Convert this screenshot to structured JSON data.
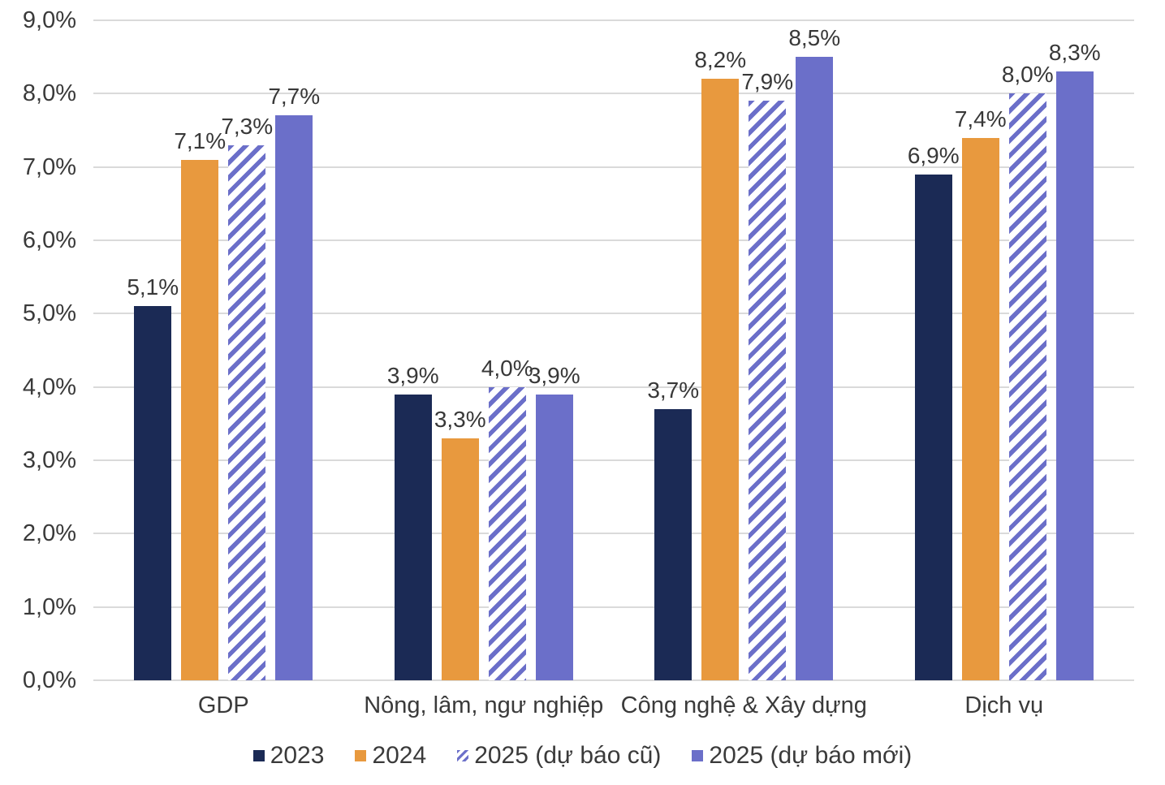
{
  "chart_data": {
    "type": "bar",
    "title": "",
    "categories": [
      "GDP",
      "Nông, lâm, ngư nghiệp",
      "Công nghệ & Xây dựng",
      "Dịch vụ"
    ],
    "series": [
      {
        "name": "2023",
        "color": "#1b2a55",
        "pattern": "solid",
        "values": [
          5.1,
          3.9,
          3.7,
          6.9
        ],
        "value_labels": [
          "5,1%",
          "3,9%",
          "3,7%",
          "6,9%"
        ]
      },
      {
        "name": "2024",
        "color": "#e8993e",
        "pattern": "solid",
        "values": [
          7.1,
          3.3,
          8.2,
          7.4
        ],
        "value_labels": [
          "7,1%",
          "3,3%",
          "8,2%",
          "7,4%"
        ]
      },
      {
        "name": "2025 (dự báo cũ)",
        "color": "#6b6fc9",
        "pattern": "hatch",
        "values": [
          7.3,
          4.0,
          7.9,
          8.0
        ],
        "value_labels": [
          "7,3%",
          "4,0%",
          "7,9%",
          "8,0%"
        ]
      },
      {
        "name": "2025 (dự báo mới)",
        "color": "#6b6fc9",
        "pattern": "solid",
        "values": [
          7.7,
          3.9,
          8.5,
          8.3
        ],
        "value_labels": [
          "7,7%",
          "3,9%",
          "8,5%",
          "8,3%"
        ]
      }
    ],
    "y_axis": {
      "min": 0,
      "max": 9,
      "step": 1,
      "ticks": [
        "9,0%",
        "8,0%",
        "7,0%",
        "6,0%",
        "5,0%",
        "4,0%",
        "3,0%",
        "2,0%",
        "1,0%",
        "0,0%"
      ]
    },
    "grid": true,
    "legend_position": "bottom",
    "colors": {
      "grid": "#dadada",
      "text": "#3a3a3a",
      "background": "#ffffff"
    }
  }
}
